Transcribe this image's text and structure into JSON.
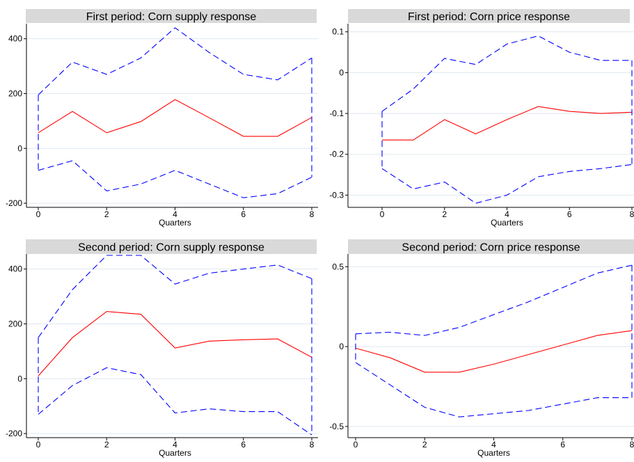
{
  "chart_data": [
    {
      "type": "line",
      "title": "First period: Corn supply response",
      "xlabel": "Quarters",
      "ylabel": "",
      "x": [
        0,
        1,
        2,
        3,
        4,
        5,
        6,
        7,
        8
      ],
      "xticks": [
        0,
        2,
        4,
        6,
        8
      ],
      "xlim": [
        0,
        8
      ],
      "yticks": [
        -200,
        0,
        200,
        400
      ],
      "ytick_labels": [
        "-200",
        "0",
        "200",
        "400"
      ],
      "ylim": [
        -215,
        455
      ],
      "grid": true,
      "series": [
        {
          "role": "upper",
          "color": "#0000ff",
          "style": "dashed",
          "values": [
            195,
            315,
            270,
            330,
            440,
            350,
            270,
            250,
            330
          ]
        },
        {
          "role": "estimate",
          "color": "#ff0000",
          "style": "solid",
          "values": [
            57,
            135,
            57,
            98,
            178,
            112,
            44,
            44,
            113
          ]
        },
        {
          "role": "lower",
          "color": "#0000ff",
          "style": "dashed",
          "values": [
            -80,
            -45,
            -155,
            -130,
            -80,
            -130,
            -180,
            -165,
            -105
          ]
        }
      ]
    },
    {
      "type": "line",
      "title": "First period: Corn price response",
      "xlabel": "Quarters",
      "ylabel": "",
      "x": [
        0,
        1,
        2,
        3,
        4,
        5,
        6,
        7,
        8
      ],
      "xticks": [
        0,
        2,
        4,
        6,
        8
      ],
      "xlim": [
        0,
        8
      ],
      "yticks": [
        -0.3,
        -0.2,
        -0.1,
        0,
        0.1
      ],
      "ytick_labels": [
        "-0.3",
        "-0.2",
        "-0.1",
        "0",
        "0.1"
      ],
      "ylim": [
        -0.33,
        0.12
      ],
      "grid": true,
      "series": [
        {
          "role": "upper",
          "color": "#0000ff",
          "style": "dashed",
          "values": [
            -0.095,
            -0.04,
            0.035,
            0.02,
            0.07,
            0.09,
            0.05,
            0.03,
            0.03
          ]
        },
        {
          "role": "estimate",
          "color": "#ff0000",
          "style": "solid",
          "values": [
            -0.165,
            -0.165,
            -0.115,
            -0.15,
            -0.115,
            -0.083,
            -0.095,
            -0.1,
            -0.097
          ]
        },
        {
          "role": "lower",
          "color": "#0000ff",
          "style": "dashed",
          "values": [
            -0.235,
            -0.285,
            -0.268,
            -0.32,
            -0.3,
            -0.255,
            -0.242,
            -0.235,
            -0.225
          ]
        }
      ]
    },
    {
      "type": "line",
      "title": "Second period: Corn supply response",
      "xlabel": "Quarters",
      "ylabel": "",
      "x": [
        0,
        1,
        2,
        3,
        4,
        5,
        6,
        7,
        8
      ],
      "xticks": [
        0,
        2,
        4,
        6,
        8
      ],
      "xlim": [
        0,
        8
      ],
      "yticks": [
        -200,
        0,
        200,
        400
      ],
      "ytick_labels": [
        "-200",
        "0",
        "200",
        "400"
      ],
      "ylim": [
        -215,
        455
      ],
      "grid": true,
      "series": [
        {
          "role": "upper",
          "color": "#0000ff",
          "style": "dashed",
          "values": [
            150,
            325,
            450,
            450,
            345,
            385,
            400,
            415,
            365
          ]
        },
        {
          "role": "estimate",
          "color": "#ff0000",
          "style": "solid",
          "values": [
            10,
            150,
            245,
            235,
            112,
            137,
            142,
            145,
            78
          ]
        },
        {
          "role": "lower",
          "color": "#0000ff",
          "style": "dashed",
          "values": [
            -130,
            -25,
            40,
            15,
            -125,
            -110,
            -120,
            -120,
            -205
          ]
        }
      ]
    },
    {
      "type": "line",
      "title": "Second period: Corn price response",
      "xlabel": "Quarters",
      "ylabel": "",
      "x": [
        0,
        1,
        2,
        3,
        4,
        5,
        6,
        7,
        8
      ],
      "xticks": [
        0,
        2,
        4,
        6,
        8
      ],
      "xlim": [
        0,
        8
      ],
      "yticks": [
        -0.5,
        0,
        0.5
      ],
      "ytick_labels": [
        "-0.5",
        "0",
        "0.5"
      ],
      "ylim": [
        -0.57,
        0.58
      ],
      "grid": true,
      "series": [
        {
          "role": "upper",
          "color": "#0000ff",
          "style": "dashed",
          "values": [
            0.08,
            0.09,
            0.07,
            0.12,
            0.2,
            0.28,
            0.37,
            0.46,
            0.51
          ]
        },
        {
          "role": "estimate",
          "color": "#ff0000",
          "style": "solid",
          "values": [
            -0.01,
            -0.07,
            -0.16,
            -0.16,
            -0.11,
            -0.05,
            0.01,
            0.07,
            0.1
          ]
        },
        {
          "role": "lower",
          "color": "#0000ff",
          "style": "dashed",
          "values": [
            -0.1,
            -0.24,
            -0.38,
            -0.44,
            -0.42,
            -0.4,
            -0.36,
            -0.32,
            -0.32
          ]
        }
      ]
    }
  ]
}
